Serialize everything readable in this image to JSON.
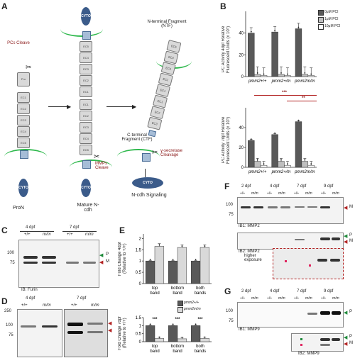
{
  "panels": {
    "A": "A",
    "B": "B",
    "C": "C",
    "D": "D",
    "E": "E",
    "F": "F",
    "G": "G"
  },
  "panelA": {
    "cyto": "CYTO",
    "pcs_cleave": "PCs Cleave",
    "pron": "ProN",
    "mature": "Mature N-cdh",
    "mmps_cleave": "MMPs Cleave",
    "ntf": "N-terminal Fragment (NTF)",
    "ctf": "C-terminal Fragment (CTF)",
    "gamma": "γ-secretase Cleavage",
    "signaling": "N-cdh Signaling",
    "ec_labels": [
      "EC1",
      "EC2",
      "EC3",
      "EC4",
      "EC5"
    ],
    "pro_label": "Pro"
  },
  "panelB": {
    "legend": [
      "0μM PCI",
      "1μM PCI",
      "10μM PCI"
    ],
    "legend_colors": [
      "#595959",
      "#bfbfbf",
      "#ffffff"
    ],
    "top_ylabel1": "PC Activity 4dpf",
    "top_ylabel2": "Relative Fluorescent Units",
    "top_ylabel3": "(x 10⁵)",
    "bot_ylabel1": "PC Activity 7dpf",
    "bot_ylabel2": "Relative Fluorescent Units",
    "bot_ylabel3": "(x 10⁵)",
    "sig1": "***",
    "sig2": "**",
    "genotypes": [
      "pmm2+/+",
      "pmm2+/m",
      "pmm2m/m"
    ]
  },
  "chart_data": [
    {
      "type": "bar",
      "title": "",
      "ylabel": "PC Activity 4dpf Relative Fluorescent Units (x 10⁵)",
      "ylim": [
        0,
        60
      ],
      "yticks": [
        0,
        20,
        40
      ],
      "categories": [
        "pmm2+/+",
        "pmm2+/m",
        "pmm2m/m"
      ],
      "series": [
        {
          "name": "0μM PCI",
          "values": [
            40,
            41,
            44
          ]
        },
        {
          "name": "1μM PCI",
          "values": [
            2,
            2,
            2
          ]
        },
        {
          "name": "10μM PCI",
          "values": [
            1,
            1,
            1
          ]
        }
      ]
    },
    {
      "type": "bar",
      "title": "",
      "ylabel": "PC Activity 7dpf Relative Fluorescent Units (x 10⁵)",
      "ylim": [
        0,
        60
      ],
      "yticks": [
        0,
        20,
        40
      ],
      "categories": [
        "pmm2+/+",
        "pmm2+/m",
        "pmm2m/m"
      ],
      "series": [
        {
          "name": "0μM PCI",
          "values": [
            27,
            33,
            46
          ]
        },
        {
          "name": "1μM PCI",
          "values": [
            6,
            6,
            6
          ]
        },
        {
          "name": "10μM PCI",
          "values": [
            2,
            2,
            2
          ]
        }
      ]
    },
    {
      "type": "bar",
      "title": "",
      "ylabel": "Fold Change 4dpf (Relative to +/+)",
      "ylim": [
        0,
        2.2
      ],
      "yticks": [
        0,
        0.5,
        1,
        1.5,
        2
      ],
      "categories": [
        "top band",
        "bottom band",
        "both bands"
      ],
      "series": [
        {
          "name": "pmm2+/+",
          "values": [
            1,
            1,
            1
          ]
        },
        {
          "name": "pmm2m/m",
          "values": [
            1.65,
            1.6,
            1.6
          ]
        }
      ]
    },
    {
      "type": "bar",
      "title": "",
      "ylabel": "Fold Change 7dpf (Relative to +/+)",
      "ylim": [
        0,
        1.5
      ],
      "yticks": [
        0,
        0.5,
        1,
        1.5
      ],
      "categories": [
        "top band",
        "bottom band",
        "both bands"
      ],
      "series": [
        {
          "name": "pmm2+/+",
          "values": [
            1,
            1,
            1
          ]
        },
        {
          "name": "pmm2m/m",
          "values": [
            0.2,
            0.18,
            0.2
          ]
        }
      ]
    }
  ],
  "panelE": {
    "ylabel_top1": "Fold Change 4dpf",
    "ylabel_top2": "(Relative to +/+)",
    "ylabel_bot1": "Fold Change 7dpf",
    "ylabel_bot2": "(Relative to +/+)",
    "legend": [
      "pmm2+/+",
      "pmm2m/m"
    ],
    "legend_colors": [
      "#595959",
      "#d9d9d9"
    ],
    "stars": "***",
    "categories": [
      "top\nband",
      "bottom\nband",
      "both\nbands"
    ]
  },
  "blots": {
    "c_days": [
      "4 dpf",
      "7 dpf"
    ],
    "c_geno": [
      "+/+",
      "m/m",
      "+/+",
      "m/m"
    ],
    "c_mw": [
      "100",
      "75"
    ],
    "c_caption": "IB: Furin",
    "p": "P",
    "m": "M",
    "d_days": [
      "4 dpf",
      "7 dpf"
    ],
    "d_geno": [
      "+/+",
      "m/m",
      "+/+",
      "m/m"
    ],
    "d_mw": [
      "250",
      "100",
      "75"
    ],
    "f_days": [
      "2 dpf",
      "4 dpf",
      "7 dpf",
      "9 dpf"
    ],
    "f_geno": [
      "+/+",
      "m/m",
      "+/+",
      "m/m",
      "+/+",
      "m/m",
      "+/+",
      "m/m"
    ],
    "f_mw": [
      "100",
      "75"
    ],
    "f_ib1": "IB1: MMP2",
    "f_ib2": "IB2: MMP2",
    "f_higher": "higher exposure",
    "g_days": [
      "2 dpf",
      "4 dpf",
      "7 dpf",
      "9 dpf"
    ],
    "g_geno": [
      "+/+",
      "m/m",
      "+/+",
      "m/m",
      "+/+",
      "m/m",
      "+/+",
      "m/m"
    ],
    "g_mw": [
      "100",
      "75"
    ],
    "g_ib1": "IB1: MMP9",
    "g_ib2": "IB2: MMP9"
  }
}
